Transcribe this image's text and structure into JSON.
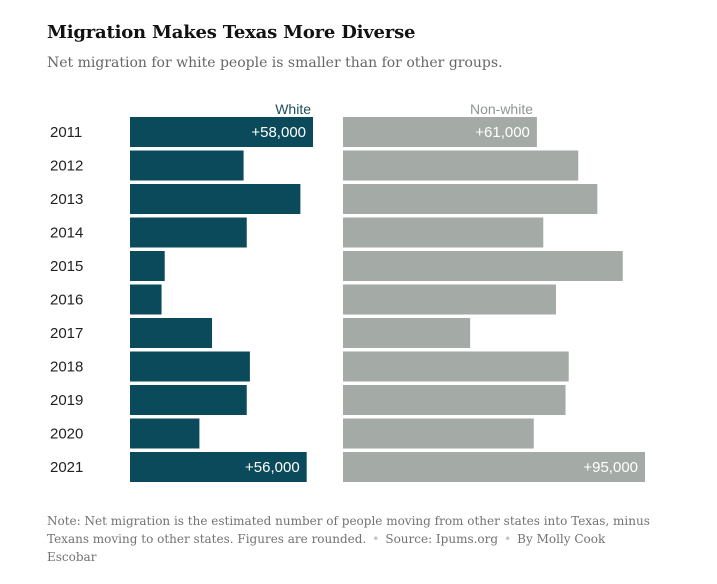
{
  "header": {
    "title": "Migration Makes Texas More Diverse",
    "subtitle": "Net migration for white people is smaller than for other groups."
  },
  "footer": {
    "note": "Note: Net migration is the estimated number of people moving from other states into Texas, minus Texans moving to other states. Figures are rounded.",
    "source": "Source: Ipums.org",
    "byline": "By Molly Cook Escobar"
  },
  "colors": {
    "white_series": "#0b4a5a",
    "nonwhite_series": "#a4aaa6",
    "white_label": "#1e4f5c",
    "nonwhite_label": "#8f9591"
  },
  "chart_data": {
    "type": "bar",
    "orientation": "horizontal",
    "categories": [
      "2011",
      "2012",
      "2013",
      "2014",
      "2015",
      "2016",
      "2017",
      "2018",
      "2019",
      "2020",
      "2021"
    ],
    "series": [
      {
        "name": "White",
        "values": [
          58000,
          36000,
          54000,
          37000,
          11000,
          10000,
          26000,
          38000,
          37000,
          22000,
          56000
        ],
        "data_labels": [
          "+58,000",
          "",
          "",
          "",
          "",
          "",
          "",
          "",
          "",
          "",
          "+56,000"
        ]
      },
      {
        "name": "Non-white",
        "values": [
          61000,
          74000,
          80000,
          63000,
          88000,
          67000,
          40000,
          71000,
          70000,
          60000,
          95000
        ],
        "data_labels": [
          "+61,000",
          "",
          "",
          "",
          "",
          "",
          "",
          "",
          "",
          "",
          "+95,000"
        ]
      }
    ],
    "xlim": [
      0,
      95000
    ],
    "grid": false,
    "legend": "column headers above each panel"
  }
}
